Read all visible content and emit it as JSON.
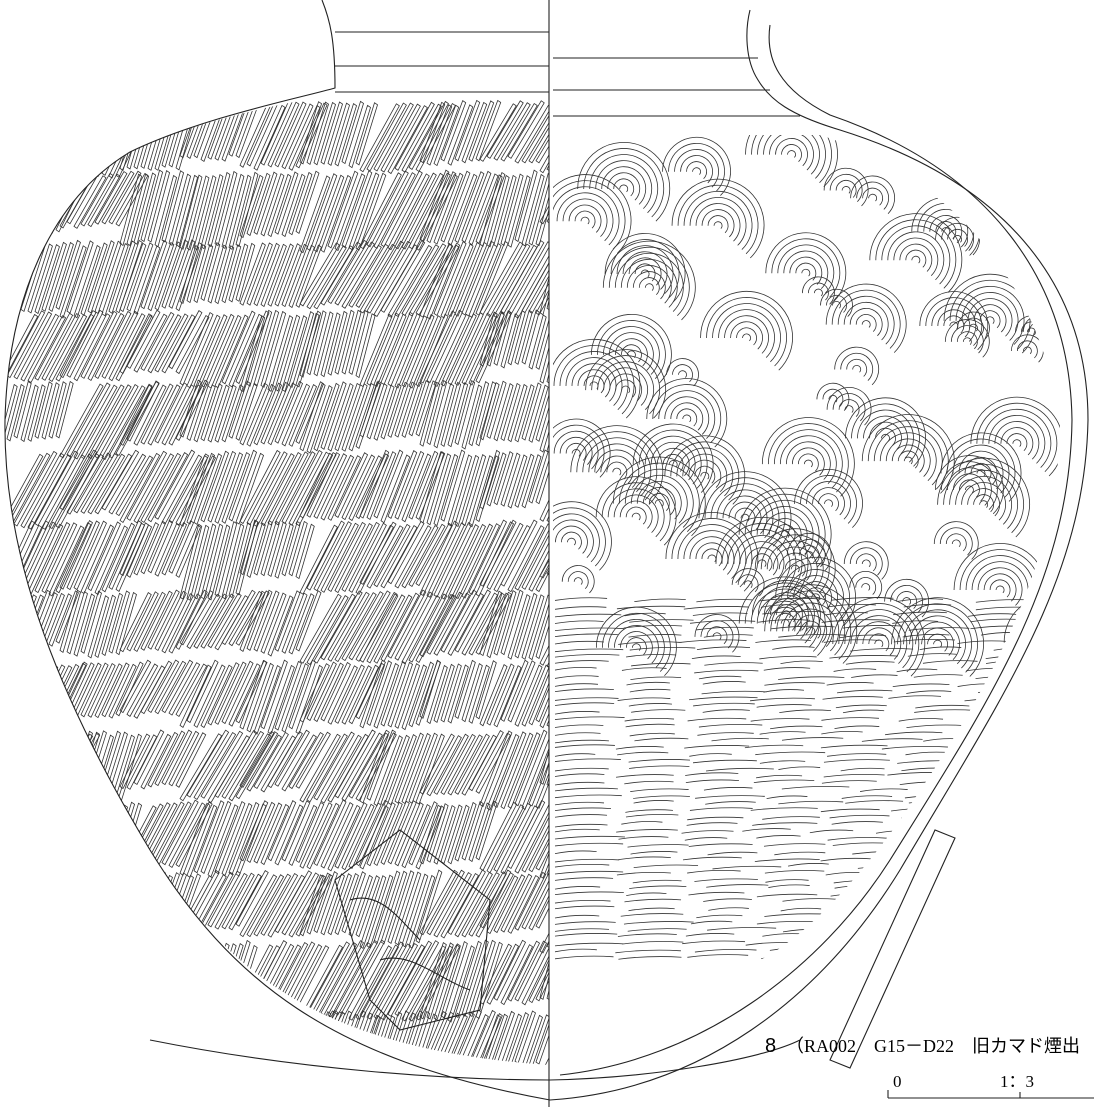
{
  "figure": {
    "number": "8",
    "caption": "（RA002　G15－D22　旧カマド煙出",
    "scale": {
      "zero": "0",
      "ratio": "1：3"
    }
  }
}
